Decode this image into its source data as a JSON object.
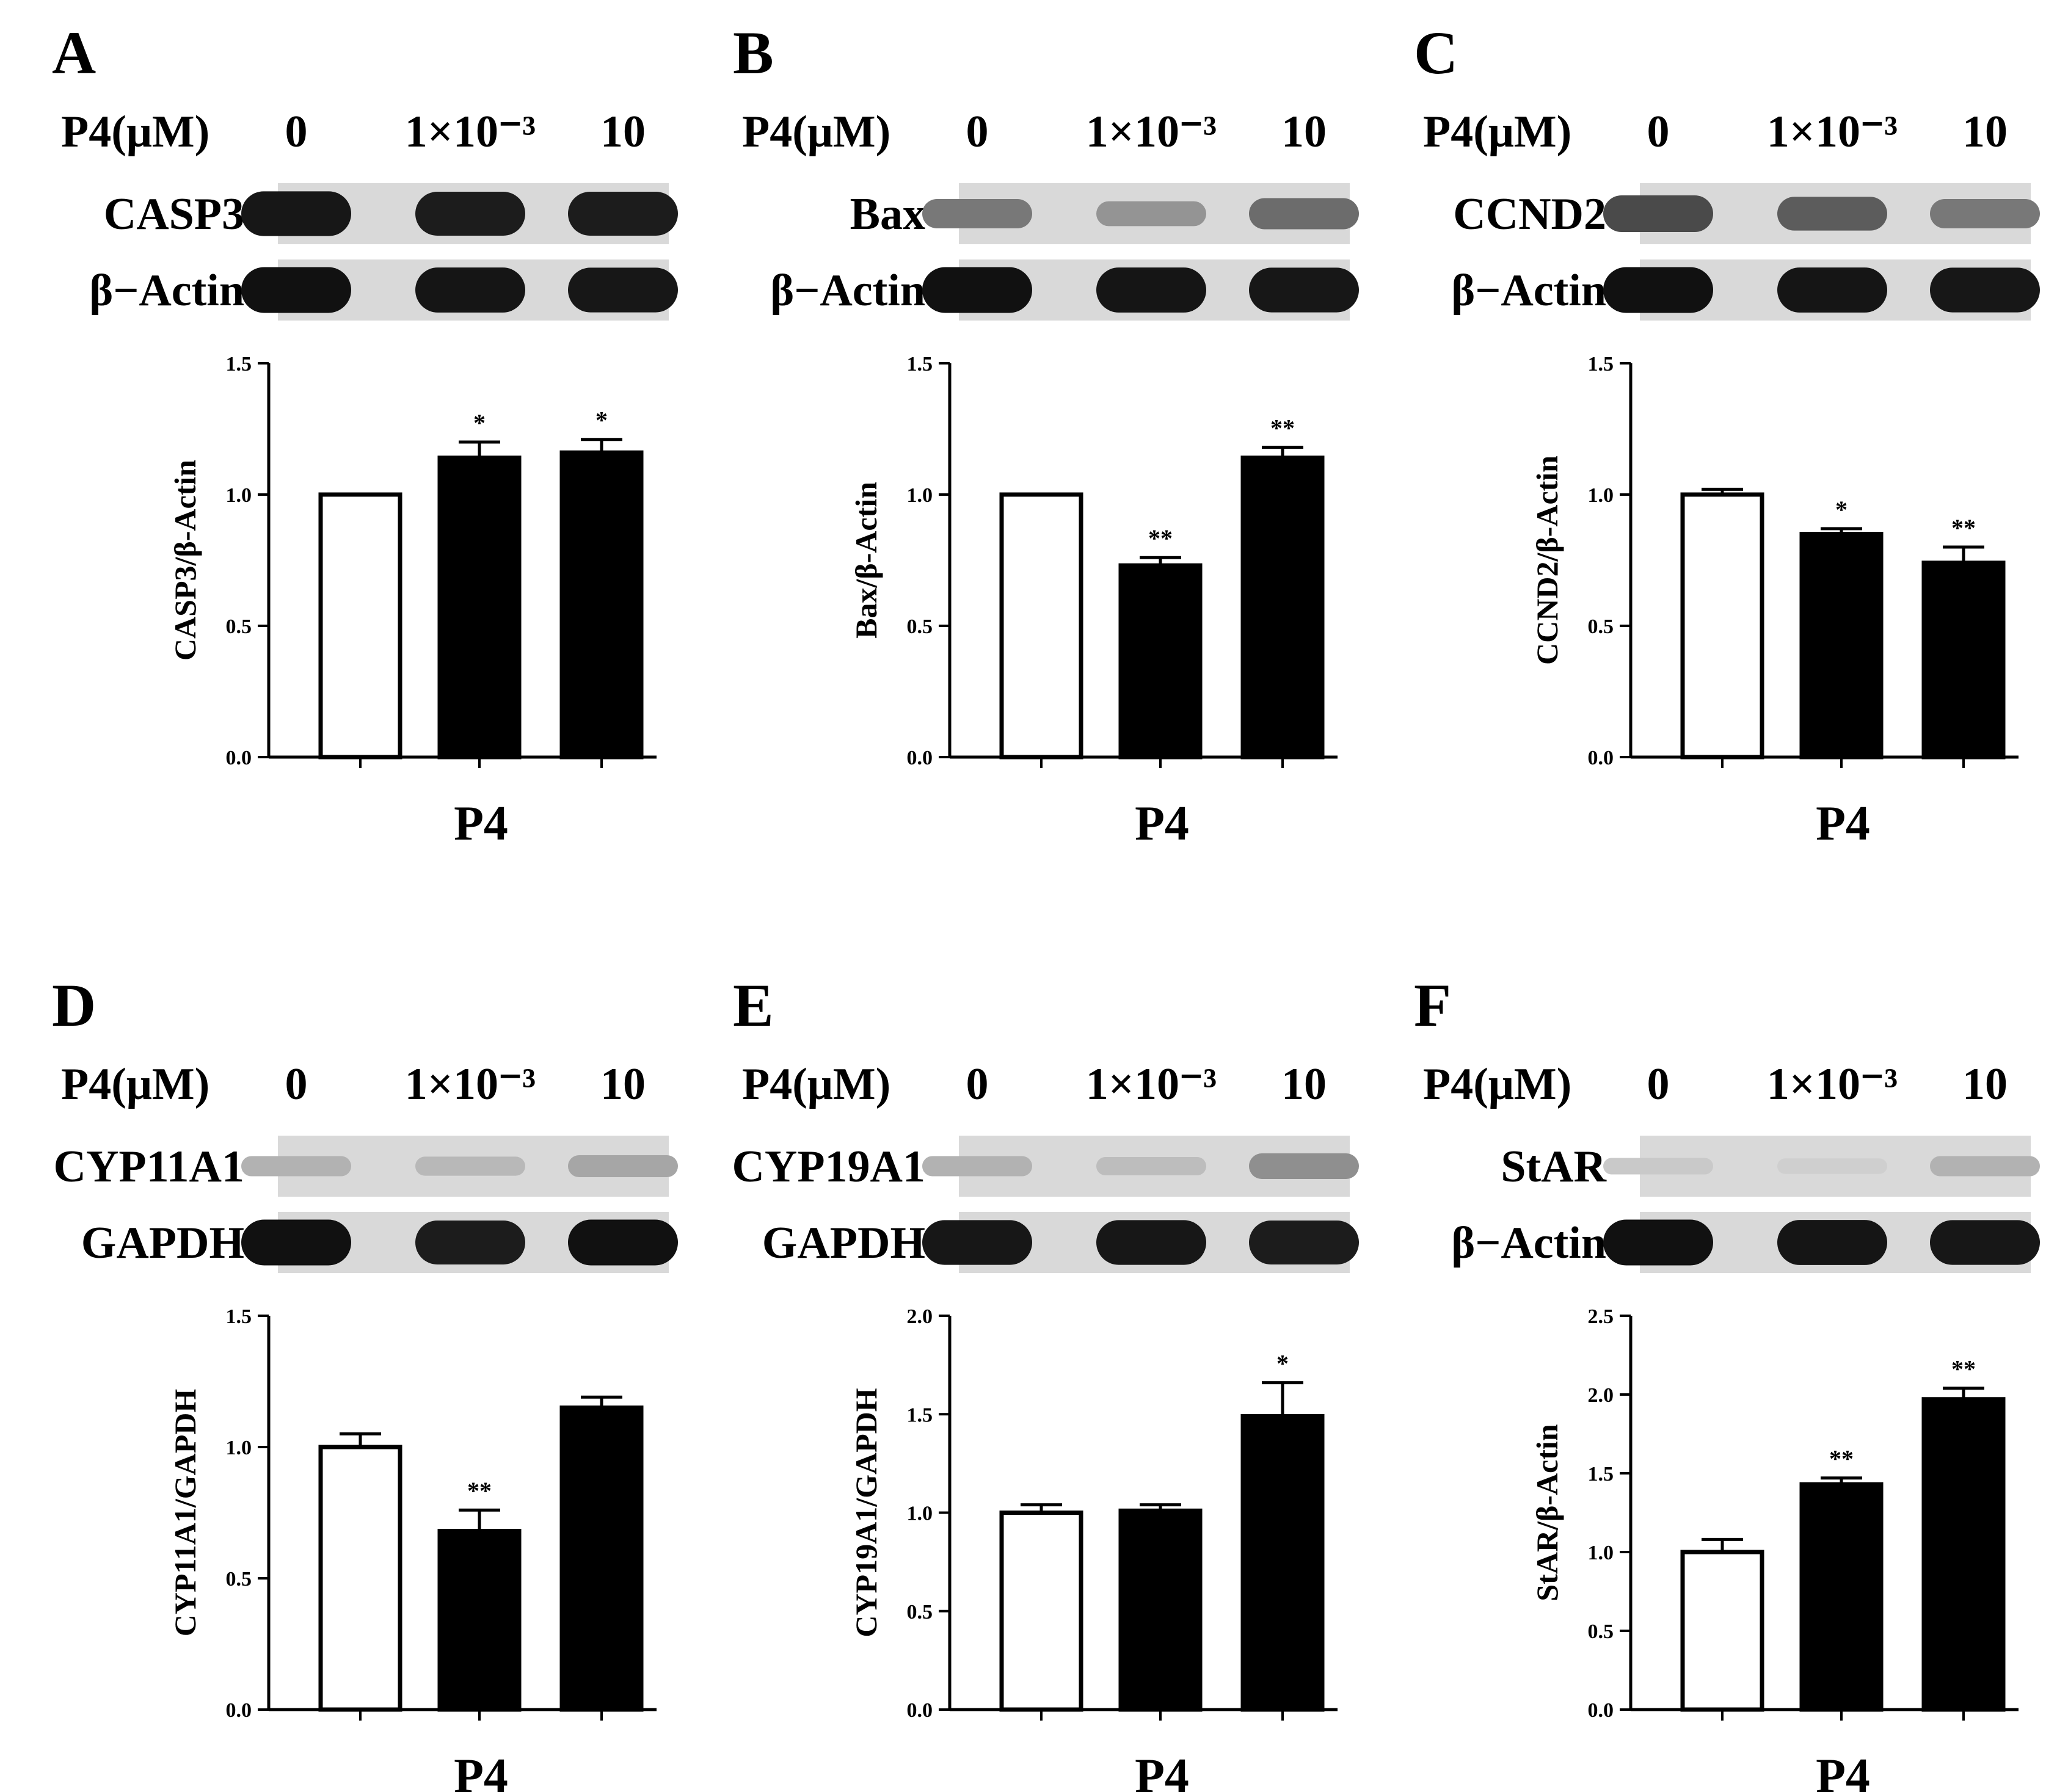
{
  "figure": {
    "treatment_label": "P4(μM)",
    "doses": [
      "0",
      "1×10⁻³",
      "10"
    ],
    "x_title": "P4"
  },
  "panels": [
    {
      "letter": "A",
      "blot_proteins": [
        "CASP3",
        "β−Actin"
      ],
      "band_levels": [
        [
          0.92,
          0.9,
          0.9
        ],
        [
          0.95,
          0.93,
          0.92
        ]
      ]
    },
    {
      "letter": "B",
      "blot_proteins": [
        "Bax",
        "β−Actin"
      ],
      "band_levels": [
        [
          0.5,
          0.38,
          0.55
        ],
        [
          0.95,
          0.93,
          0.92
        ]
      ]
    },
    {
      "letter": "C",
      "blot_proteins": [
        "CCND2",
        "β−Actin"
      ],
      "band_levels": [
        [
          0.7,
          0.62,
          0.5
        ],
        [
          0.95,
          0.93,
          0.92
        ]
      ]
    },
    {
      "letter": "D",
      "blot_proteins": [
        "CYP11A1",
        "GAPDH"
      ],
      "band_levels": [
        [
          0.25,
          0.22,
          0.3
        ],
        [
          0.95,
          0.9,
          0.95
        ]
      ]
    },
    {
      "letter": "E",
      "blot_proteins": [
        "CYP19A1",
        "GAPDH"
      ],
      "band_levels": [
        [
          0.25,
          0.2,
          0.4
        ],
        [
          0.92,
          0.92,
          0.9
        ]
      ]
    },
    {
      "letter": "F",
      "blot_proteins": [
        "StAR",
        "β−Actin"
      ],
      "band_levels": [
        [
          0.15,
          0.12,
          0.25
        ],
        [
          0.95,
          0.93,
          0.92
        ]
      ]
    }
  ],
  "colors": {
    "control_bar": "#ffffff",
    "treated_bar": "#000000",
    "axis": "#000000"
  },
  "chart_data": [
    {
      "type": "bar",
      "title": "",
      "xlabel": "P4",
      "ylabel": "CASP3/β-Actin",
      "categories": [
        "0",
        "1×10⁻³",
        "10"
      ],
      "values": [
        1.0,
        1.14,
        1.16
      ],
      "errors": [
        0.0,
        0.06,
        0.05
      ],
      "significance": [
        "",
        "*",
        "*"
      ],
      "ylim": [
        0,
        1.5
      ],
      "yticks": [
        "0.0",
        "0.5",
        "1.0",
        "1.5"
      ],
      "grid": false
    },
    {
      "type": "bar",
      "title": "",
      "xlabel": "P4",
      "ylabel": "Bax/β-Actin",
      "categories": [
        "0",
        "1×10⁻³",
        "10"
      ],
      "values": [
        1.0,
        0.73,
        1.14
      ],
      "errors": [
        0.0,
        0.03,
        0.04
      ],
      "significance": [
        "",
        "**",
        "**"
      ],
      "ylim": [
        0,
        1.5
      ],
      "yticks": [
        "0.0",
        "0.5",
        "1.0",
        "1.5"
      ],
      "grid": false
    },
    {
      "type": "bar",
      "title": "",
      "xlabel": "P4",
      "ylabel": "CCND2/β-Actin",
      "categories": [
        "0",
        "1×10⁻³",
        "10"
      ],
      "values": [
        1.0,
        0.85,
        0.74
      ],
      "errors": [
        0.02,
        0.02,
        0.06
      ],
      "significance": [
        "",
        "*",
        "**"
      ],
      "ylim": [
        0,
        1.5
      ],
      "yticks": [
        "0.0",
        "0.5",
        "1.0",
        "1.5"
      ],
      "grid": false
    },
    {
      "type": "bar",
      "title": "",
      "xlabel": "P4",
      "ylabel": "CYP11A1/GAPDH",
      "categories": [
        "0",
        "1×10⁻³",
        "10"
      ],
      "values": [
        1.0,
        0.68,
        1.15
      ],
      "errors": [
        0.05,
        0.08,
        0.04
      ],
      "significance": [
        "",
        "**",
        ""
      ],
      "ylim": [
        0,
        1.5
      ],
      "yticks": [
        "0.0",
        "0.5",
        "1.0",
        "1.5"
      ],
      "grid": false
    },
    {
      "type": "bar",
      "title": "",
      "xlabel": "P4",
      "ylabel": "CYP19A1/GAPDH",
      "categories": [
        "0",
        "1×10⁻³",
        "10"
      ],
      "values": [
        1.0,
        1.01,
        1.49
      ],
      "errors": [
        0.04,
        0.03,
        0.17
      ],
      "significance": [
        "",
        "",
        "*"
      ],
      "ylim": [
        0,
        2.0
      ],
      "yticks": [
        "0.0",
        "0.5",
        "1.0",
        "1.5",
        "2.0"
      ],
      "grid": false
    },
    {
      "type": "bar",
      "title": "",
      "xlabel": "P4",
      "ylabel": "StAR/β-Actin",
      "categories": [
        "0",
        "1×10⁻³",
        "10"
      ],
      "values": [
        1.0,
        1.43,
        1.97
      ],
      "errors": [
        0.08,
        0.04,
        0.07
      ],
      "significance": [
        "",
        "**",
        "**"
      ],
      "ylim": [
        0,
        2.5
      ],
      "yticks": [
        "0.0",
        "0.5",
        "1.0",
        "1.5",
        "2.0",
        "2.5"
      ],
      "grid": false
    }
  ]
}
